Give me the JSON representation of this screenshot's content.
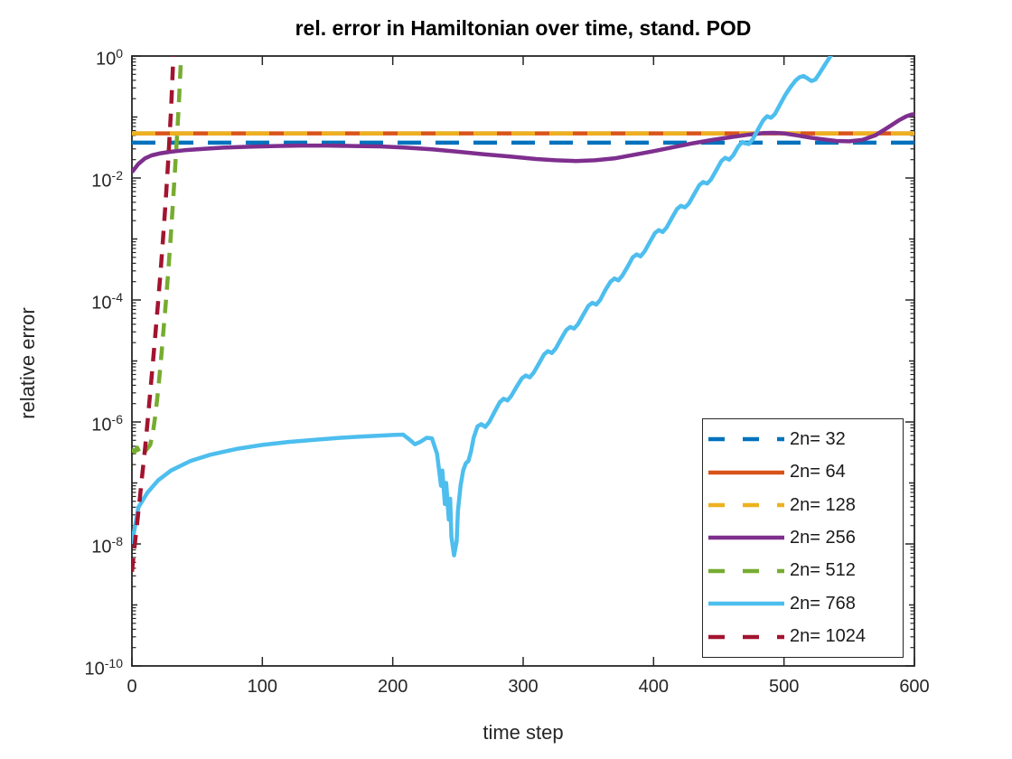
{
  "figure": {
    "title": "rel. error in Hamiltonian over time, stand. POD",
    "xlabel": "time step",
    "ylabel": "relative error"
  },
  "chart_data": {
    "type": "line",
    "title": "rel. error in Hamiltonian over time, stand. POD",
    "xlabel": "time step",
    "ylabel": "relative error",
    "x_range": [
      0,
      600
    ],
    "y_scale": "log10",
    "y_range_exponents": [
      -10,
      0
    ],
    "x_ticks": [
      0,
      100,
      200,
      300,
      400,
      500,
      600
    ],
    "y_tick_exponents": [
      0,
      -2,
      -4,
      -6,
      -8,
      -10
    ],
    "grid": false,
    "legend_position": "lower-right",
    "axis_color": "#262626",
    "background": "#ffffff",
    "series": [
      {
        "label": "2n= 32",
        "color": "#0072BD",
        "style": "dashed",
        "points": [
          [
            0,
            0.038
          ],
          [
            600,
            0.038
          ]
        ]
      },
      {
        "label": "2n= 64",
        "color": "#D95319",
        "style": "solid",
        "points": [
          [
            0,
            0.054
          ],
          [
            600,
            0.054
          ]
        ]
      },
      {
        "label": "2n= 128",
        "color": "#EDB120",
        "style": "dashed",
        "points": [
          [
            0,
            0.054
          ],
          [
            600,
            0.054
          ]
        ]
      },
      {
        "label": "2n= 256",
        "color": "#7E2F8E",
        "style": "solid",
        "points": [
          [
            0,
            0.0125
          ],
          [
            5,
            0.017
          ],
          [
            10,
            0.021
          ],
          [
            15,
            0.0235
          ],
          [
            22,
            0.0255
          ],
          [
            30,
            0.027
          ],
          [
            40,
            0.0285
          ],
          [
            55,
            0.03
          ],
          [
            70,
            0.0315
          ],
          [
            90,
            0.0325
          ],
          [
            110,
            0.0335
          ],
          [
            130,
            0.034
          ],
          [
            150,
            0.034
          ],
          [
            170,
            0.0335
          ],
          [
            190,
            0.033
          ],
          [
            210,
            0.0315
          ],
          [
            230,
            0.0295
          ],
          [
            250,
            0.027
          ],
          [
            270,
            0.0245
          ],
          [
            290,
            0.0225
          ],
          [
            310,
            0.0205
          ],
          [
            325,
            0.0195
          ],
          [
            340,
            0.019
          ],
          [
            355,
            0.0195
          ],
          [
            370,
            0.021
          ],
          [
            385,
            0.024
          ],
          [
            400,
            0.0275
          ],
          [
            415,
            0.032
          ],
          [
            430,
            0.037
          ],
          [
            445,
            0.042
          ],
          [
            460,
            0.047
          ],
          [
            472,
            0.051
          ],
          [
            484,
            0.0545
          ],
          [
            492,
            0.055
          ],
          [
            500,
            0.054
          ],
          [
            510,
            0.05
          ],
          [
            520,
            0.046
          ],
          [
            530,
            0.043
          ],
          [
            540,
            0.0405
          ],
          [
            550,
            0.04
          ],
          [
            560,
            0.042
          ],
          [
            570,
            0.05
          ],
          [
            580,
            0.068
          ],
          [
            588,
            0.088
          ],
          [
            594,
            0.103
          ],
          [
            598,
            0.11
          ],
          [
            600,
            0.111
          ]
        ]
      },
      {
        "label": "2n= 512",
        "color": "#77AC30",
        "style": "dashed",
        "points": [
          [
            0,
            3.6e-07
          ],
          [
            2,
            3.2e-07
          ],
          [
            4,
            3.8e-07
          ],
          [
            6,
            3.1e-07
          ],
          [
            8,
            3.6e-07
          ],
          [
            10,
            3.3e-07
          ],
          [
            12,
            3.7e-07
          ],
          [
            14,
            4.2e-07
          ],
          [
            16,
            6.5e-07
          ],
          [
            18,
            1.3e-06
          ],
          [
            20,
            3.2e-06
          ],
          [
            22,
            9e-06
          ],
          [
            24,
            2.8e-05
          ],
          [
            26,
            9e-05
          ],
          [
            28,
            0.00032
          ],
          [
            30,
            0.0013
          ],
          [
            32,
            0.006
          ],
          [
            34,
            0.03
          ],
          [
            36,
            0.17
          ],
          [
            38,
            1.3
          ]
        ]
      },
      {
        "label": "2n= 768",
        "color": "#4DBEEE",
        "style": "solid",
        "points": [
          [
            0,
            1e-08
          ],
          [
            5,
            4e-08
          ],
          [
            12,
            7e-08
          ],
          [
            20,
            1.1e-07
          ],
          [
            30,
            1.6e-07
          ],
          [
            45,
            2.3e-07
          ],
          [
            60,
            2.9e-07
          ],
          [
            80,
            3.6e-07
          ],
          [
            100,
            4.2e-07
          ],
          [
            120,
            4.7e-07
          ],
          [
            140,
            5.1e-07
          ],
          [
            160,
            5.5e-07
          ],
          [
            178,
            5.8e-07
          ],
          [
            192,
            6e-07
          ],
          [
            202,
            6.15e-07
          ],
          [
            208,
            6.2e-07
          ],
          [
            213,
            5.1e-07
          ],
          [
            217,
            4.3e-07
          ],
          [
            221,
            4.7e-07
          ],
          [
            226,
            5.5e-07
          ],
          [
            230,
            5.4e-07
          ],
          [
            234,
            3e-07
          ],
          [
            237,
            9e-08
          ],
          [
            238,
            1.6e-07
          ],
          [
            240,
            4.5e-08
          ],
          [
            241,
            1e-07
          ],
          [
            243,
            2.5e-08
          ],
          [
            244,
            5.5e-08
          ],
          [
            245,
            1.3e-08
          ],
          [
            247,
            6.5e-09
          ],
          [
            249,
            1.1e-08
          ],
          [
            250,
            3.5e-08
          ],
          [
            252,
            9e-08
          ],
          [
            254,
            1.6e-07
          ],
          [
            256,
            2.1e-07
          ],
          [
            258,
            2.3e-07
          ],
          [
            260,
            3.3e-07
          ],
          [
            262,
            5.5e-07
          ],
          [
            265,
            8.5e-07
          ],
          [
            268,
            9.2e-07
          ],
          [
            271,
            8.3e-07
          ],
          [
            274,
            1e-06
          ],
          [
            278,
            1.45e-06
          ],
          [
            282,
            2.1e-06
          ],
          [
            285,
            2.4e-06
          ],
          [
            288,
            2.25e-06
          ],
          [
            291,
            2.7e-06
          ],
          [
            295,
            3.8e-06
          ],
          [
            299,
            5.2e-06
          ],
          [
            302,
            5.8e-06
          ],
          [
            305,
            5.4e-06
          ],
          [
            308,
            6.4e-06
          ],
          [
            312,
            9e-06
          ],
          [
            316,
            1.28e-05
          ],
          [
            319,
            1.45e-05
          ],
          [
            322,
            1.35e-05
          ],
          [
            325,
            1.6e-05
          ],
          [
            329,
            2.3e-05
          ],
          [
            333,
            3.2e-05
          ],
          [
            336,
            3.6e-05
          ],
          [
            339,
            3.4e-05
          ],
          [
            342,
            4e-05
          ],
          [
            346,
            5.7e-05
          ],
          [
            350,
            8e-05
          ],
          [
            353,
            9e-05
          ],
          [
            356,
            8.4e-05
          ],
          [
            359,
            0.0001
          ],
          [
            363,
            0.000145
          ],
          [
            367,
            0.0002
          ],
          [
            370,
            0.000225
          ],
          [
            373,
            0.00021
          ],
          [
            376,
            0.00025
          ],
          [
            380,
            0.00035
          ],
          [
            384,
            0.0005
          ],
          [
            387,
            0.00056
          ],
          [
            390,
            0.00052
          ],
          [
            393,
            0.00062
          ],
          [
            397,
            0.00088
          ],
          [
            401,
            0.00125
          ],
          [
            404,
            0.0014
          ],
          [
            407,
            0.0013
          ],
          [
            410,
            0.00155
          ],
          [
            414,
            0.0022
          ],
          [
            418,
            0.0031
          ],
          [
            421,
            0.0035
          ],
          [
            424,
            0.0033
          ],
          [
            427,
            0.0038
          ],
          [
            431,
            0.0054
          ],
          [
            435,
            0.0076
          ],
          [
            438,
            0.0086
          ],
          [
            441,
            0.0081
          ],
          [
            444,
            0.0094
          ],
          [
            448,
            0.0133
          ],
          [
            452,
            0.019
          ],
          [
            455,
            0.0215
          ],
          [
            458,
            0.02
          ],
          [
            461,
            0.0235
          ],
          [
            465,
            0.033
          ],
          [
            468,
            0.039
          ],
          [
            470,
            0.037
          ],
          [
            473,
            0.036
          ],
          [
            476,
            0.043
          ],
          [
            480,
            0.062
          ],
          [
            484,
            0.088
          ],
          [
            487,
            0.103
          ],
          [
            490,
            0.097
          ],
          [
            493,
            0.112
          ],
          [
            497,
            0.16
          ],
          [
            501,
            0.23
          ],
          [
            505,
            0.31
          ],
          [
            509,
            0.4
          ],
          [
            512,
            0.45
          ],
          [
            515,
            0.47
          ],
          [
            518,
            0.43
          ],
          [
            521,
            0.39
          ],
          [
            524,
            0.41
          ],
          [
            527,
            0.51
          ],
          [
            531,
            0.7
          ],
          [
            535,
            0.95
          ],
          [
            537,
            1.1
          ],
          [
            540,
            1.3
          ]
        ]
      },
      {
        "label": "2n= 1024",
        "color": "#A2142F",
        "style": "dashed",
        "points": [
          [
            0,
            3.5e-09
          ],
          [
            2,
            9e-09
          ],
          [
            4,
            2.2e-08
          ],
          [
            6,
            5.5e-08
          ],
          [
            8,
            1.4e-07
          ],
          [
            10,
            3.5e-07
          ],
          [
            12,
            1e-06
          ],
          [
            14,
            3e-06
          ],
          [
            16,
            9e-06
          ],
          [
            18,
            2.8e-05
          ],
          [
            20,
            9e-05
          ],
          [
            22,
            0.0003
          ],
          [
            24,
            0.0011
          ],
          [
            26,
            0.0045
          ],
          [
            28,
            0.022
          ],
          [
            30,
            0.13
          ],
          [
            32,
            1.3
          ]
        ]
      }
    ]
  }
}
